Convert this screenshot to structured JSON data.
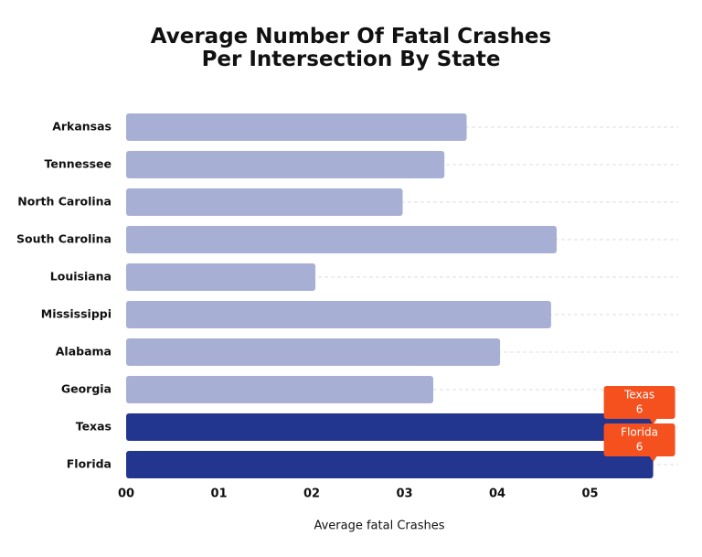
{
  "chart_data": {
    "type": "hbar",
    "title": "Average Number Of Fatal Crashes Per Intersection By State",
    "x_label": "Average fatal Crashes",
    "categories": [
      "Arkansas",
      "Tennessee",
      "North Carolina",
      "South Carolina",
      "Louisiana",
      "Mississippi",
      "Alabama",
      "Georgia",
      "Texas",
      "Florida"
    ],
    "values": [
      3.67,
      3.43,
      2.98,
      4.64,
      2.04,
      4.58,
      4.03,
      3.31,
      5.68,
      5.68
    ],
    "value_labels": [
      null,
      null,
      null,
      null,
      null,
      null,
      null,
      null,
      "6",
      "6"
    ],
    "colors": [
      "#a7b0d4",
      "#a7b0d4",
      "#a7b0d4",
      "#a7b0d4",
      "#a7b0d4",
      "#a7b0d4",
      "#a7b0d4",
      "#a7b0d4",
      "#22368f",
      "#22368f"
    ],
    "label_color": "#f4511e",
    "xlim": [
      0,
      5.95
    ],
    "xticks": [
      {
        "value": 0,
        "label": "00"
      },
      {
        "value": 1,
        "label": "01"
      },
      {
        "value": 2,
        "label": "02"
      },
      {
        "value": 3,
        "label": "03"
      },
      {
        "value": 4,
        "label": "04"
      },
      {
        "value": 5,
        "label": "05"
      }
    ]
  }
}
